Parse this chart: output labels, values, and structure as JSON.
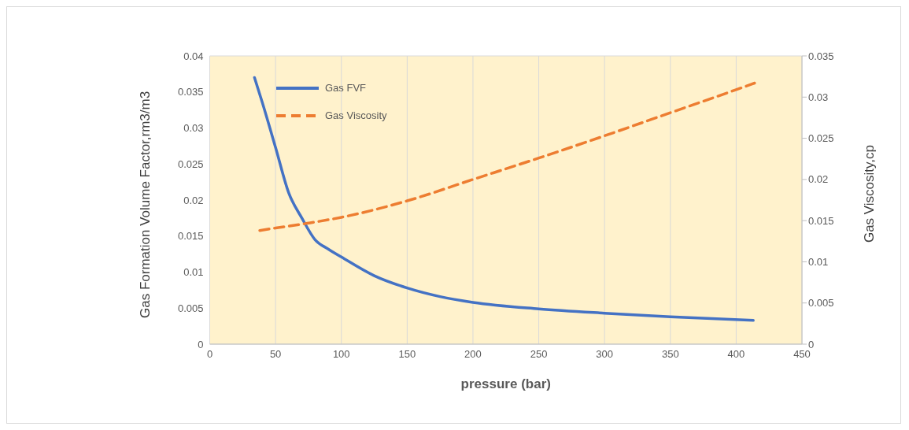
{
  "chart_data": {
    "type": "line",
    "xlabel": "pressure (bar)",
    "ylabel": "Gas Formation Volume Factor,rm3/m3",
    "y2label": "Gas Viscosity,cp",
    "xlim": [
      0,
      450
    ],
    "xticks": [
      0,
      50,
      100,
      150,
      200,
      250,
      300,
      350,
      400,
      450
    ],
    "ylim": [
      0,
      0.04
    ],
    "yticks": [
      0,
      0.005,
      0.01,
      0.015,
      0.02,
      0.025,
      0.03,
      0.035,
      0.04
    ],
    "y2lim": [
      0,
      0.035
    ],
    "y2ticks": [
      0,
      0.005,
      0.01,
      0.015,
      0.02,
      0.025,
      0.03,
      0.035
    ],
    "grid": true,
    "legend": "top left",
    "marker": "none",
    "series": [
      {
        "name": "Gas FVF",
        "color": "#4472c4",
        "line_style": "solid",
        "x": [
          34,
          40,
          50,
          60,
          70,
          80,
          90,
          100,
          125,
          150,
          175,
          200,
          250,
          300,
          350,
          413
        ],
        "values": [
          0.037,
          0.0335,
          0.0273,
          0.021,
          0.0175,
          0.0145,
          0.0132,
          0.0121,
          0.0095,
          0.0078,
          0.0066,
          0.0058,
          0.0049,
          0.0043,
          0.0038,
          0.0033
        ]
      },
      {
        "name": "Gas Viscosity",
        "color": "#ed7d31",
        "line_style": "dashed",
        "axis": "y2",
        "x": [
          38,
          50,
          75,
          100,
          150,
          200,
          250,
          300,
          350,
          400,
          414
        ],
        "values": [
          0.0138,
          0.0141,
          0.0147,
          0.0154,
          0.0174,
          0.02,
          0.0226,
          0.0253,
          0.0281,
          0.0309,
          0.0317
        ]
      }
    ]
  }
}
